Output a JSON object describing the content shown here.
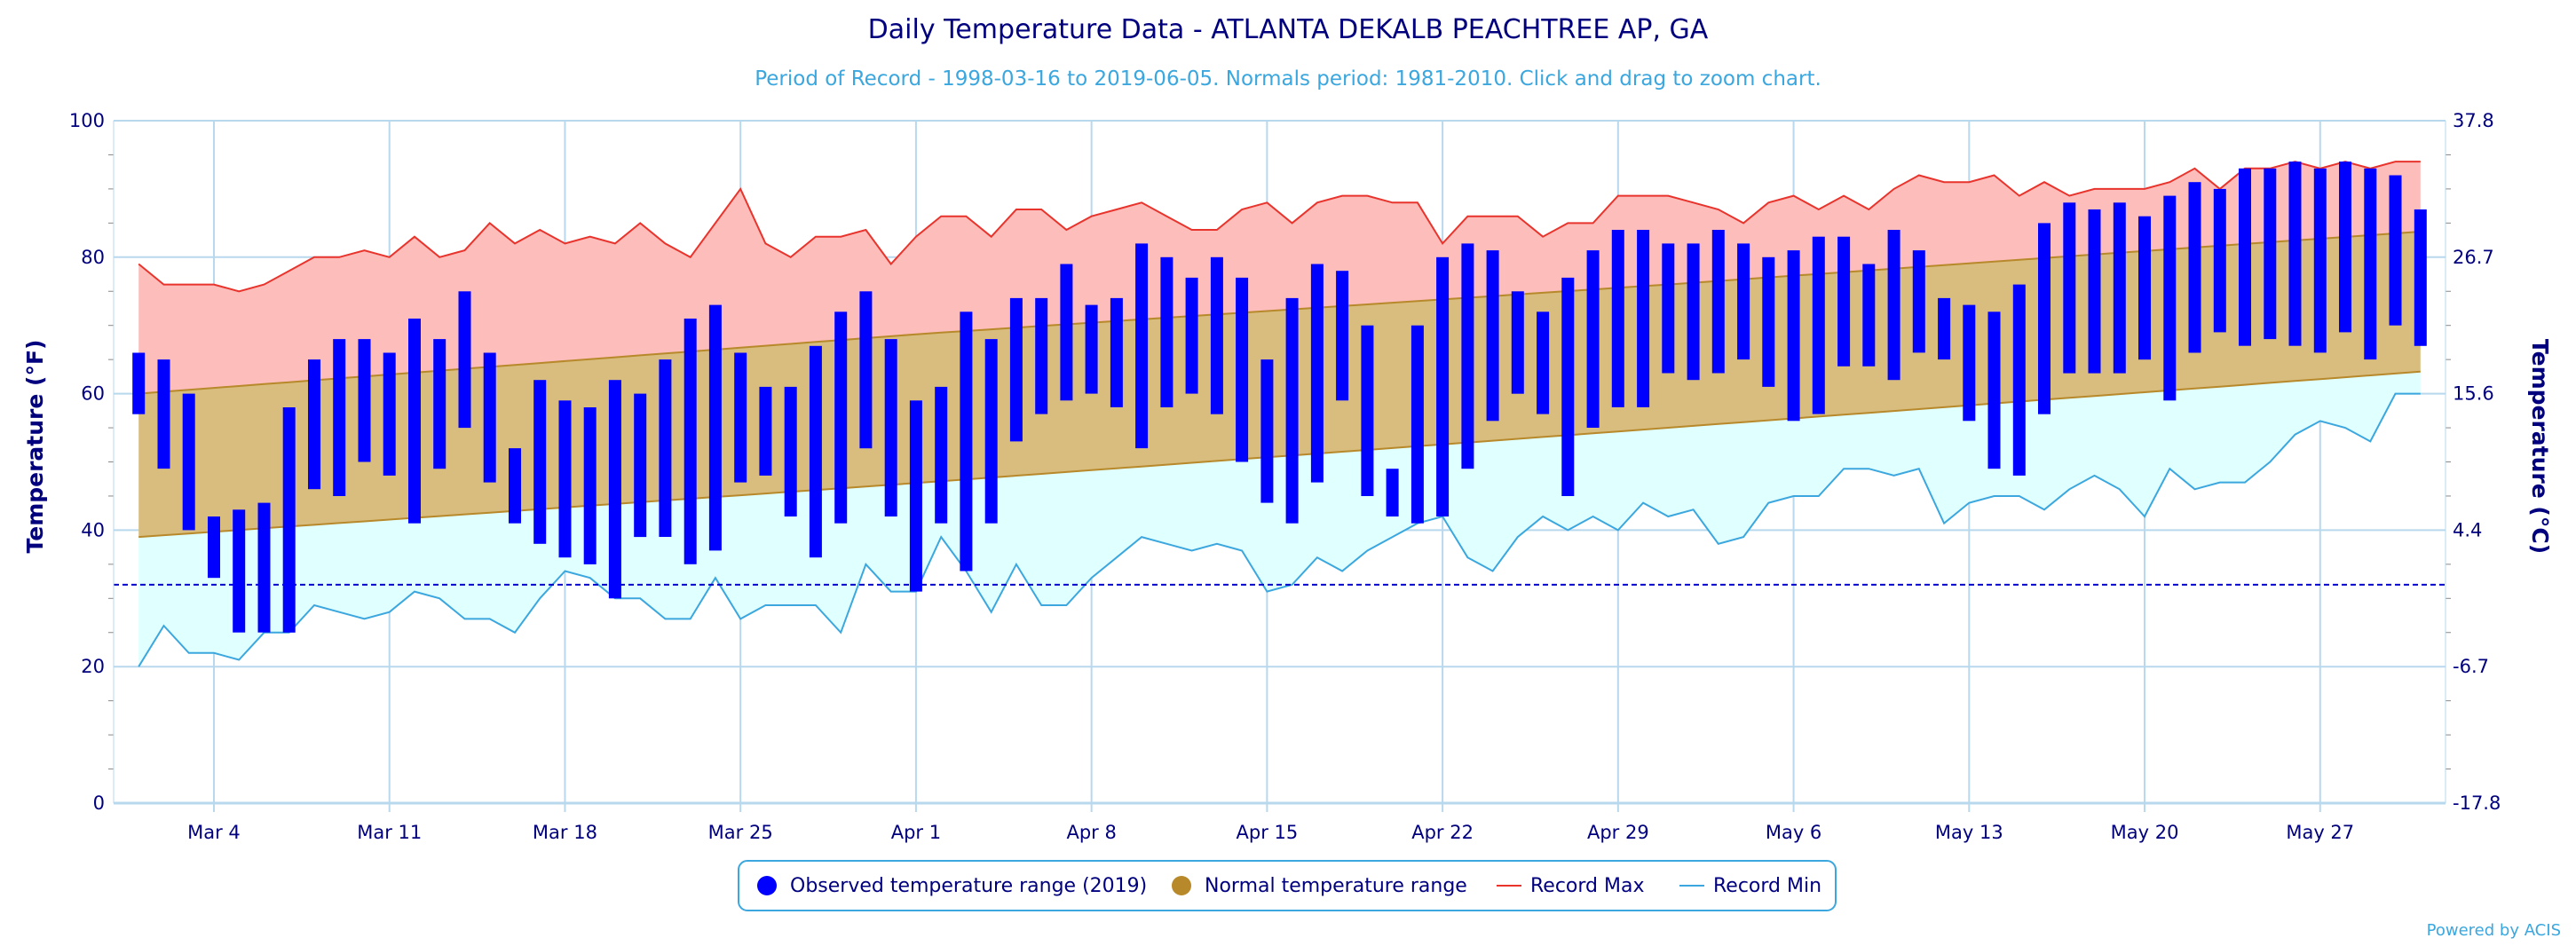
{
  "title": "Daily Temperature Data - ATLANTA DEKALB PEACHTREE AP, GA",
  "subtitle": "Period of Record - 1998-03-16 to 2019-06-05. Normals period: 1981-2010. Click and drag to zoom chart.",
  "credit": "Powered by ACIS",
  "colors": {
    "observed": "#0000ff",
    "normal_fill": "#d8bd7f",
    "normal_line": "#b8892a",
    "record_max": "#e8342c",
    "record_max_fill": "#fcbdbb",
    "record_min": "#3ba7de",
    "record_min_fill": "#e0ffff",
    "freezing": "#0000cc",
    "grid": "#b8d8ee",
    "text": "#00007f"
  },
  "chart_data": {
    "type": "bar",
    "x_type": "date",
    "y_axis": {
      "title": "Temperature (°F)",
      "range": [
        0,
        100
      ],
      "ticks": [
        "0",
        "20",
        "40",
        "60",
        "80",
        "100"
      ]
    },
    "y2_axis": {
      "title": "Temperature (°C)",
      "ticks": [
        "-17.8",
        "-6.7",
        "4.4",
        "15.6",
        "26.7",
        "37.8"
      ]
    },
    "x_axis": {
      "range": [
        "2019-02-28",
        "2019-06-01"
      ],
      "ticks": [
        {
          "date": "2019-03-04",
          "label": "Mar 4"
        },
        {
          "date": "2019-03-11",
          "label": "Mar 11"
        },
        {
          "date": "2019-03-18",
          "label": "Mar 18"
        },
        {
          "date": "2019-03-25",
          "label": "Mar 25"
        },
        {
          "date": "2019-04-01",
          "label": "Apr 1"
        },
        {
          "date": "2019-04-08",
          "label": "Apr 8"
        },
        {
          "date": "2019-04-15",
          "label": "Apr 15"
        },
        {
          "date": "2019-04-22",
          "label": "Apr 22"
        },
        {
          "date": "2019-04-29",
          "label": "Apr 29"
        },
        {
          "date": "2019-05-06",
          "label": "May 6"
        },
        {
          "date": "2019-05-13",
          "label": "May 13"
        },
        {
          "date": "2019-05-20",
          "label": "May 20"
        },
        {
          "date": "2019-05-27",
          "label": "May 27"
        }
      ]
    },
    "grid": true,
    "freezing_line": 32,
    "legend": {
      "placement": "bottom-center",
      "items": [
        {
          "label": "Observed temperature range (2019)",
          "symbol": "dot",
          "color": "#0000ff"
        },
        {
          "label": "Normal temperature range",
          "symbol": "dot",
          "color": "#b8892a"
        },
        {
          "label": "Record Max",
          "symbol": "line",
          "color": "#e8342c"
        },
        {
          "label": "Record Min",
          "symbol": "line",
          "color": "#3ba7de"
        }
      ]
    },
    "start_date": "2019-03-01",
    "observed": [
      [
        57,
        66
      ],
      [
        49,
        65
      ],
      [
        40,
        60
      ],
      [
        33,
        42
      ],
      [
        25,
        43
      ],
      [
        25,
        44
      ],
      [
        25,
        58
      ],
      [
        46,
        65
      ],
      [
        45,
        68
      ],
      [
        50,
        68
      ],
      [
        48,
        66
      ],
      [
        41,
        71
      ],
      [
        49,
        68
      ],
      [
        55,
        75
      ],
      [
        47,
        66
      ],
      [
        41,
        52
      ],
      [
        38,
        62
      ],
      [
        36,
        59
      ],
      [
        35,
        58
      ],
      [
        30,
        62
      ],
      [
        39,
        60
      ],
      [
        39,
        65
      ],
      [
        35,
        71
      ],
      [
        37,
        73
      ],
      [
        47,
        66
      ],
      [
        48,
        61
      ],
      [
        42,
        61
      ],
      [
        36,
        67
      ],
      [
        41,
        72
      ],
      [
        52,
        75
      ],
      [
        42,
        68
      ],
      [
        31,
        59
      ],
      [
        41,
        61
      ],
      [
        34,
        72
      ],
      [
        41,
        68
      ],
      [
        53,
        74
      ],
      [
        57,
        74
      ],
      [
        59,
        79
      ],
      [
        60,
        73
      ],
      [
        58,
        74
      ],
      [
        52,
        82
      ],
      [
        58,
        80
      ],
      [
        60,
        77
      ],
      [
        57,
        80
      ],
      [
        50,
        77
      ],
      [
        44,
        65
      ],
      [
        41,
        74
      ],
      [
        47,
        79
      ],
      [
        59,
        78
      ],
      [
        45,
        70
      ],
      [
        42,
        49
      ],
      [
        41,
        70
      ],
      [
        42,
        80
      ],
      [
        49,
        82
      ],
      [
        56,
        81
      ],
      [
        60,
        75
      ],
      [
        57,
        72
      ],
      [
        45,
        77
      ],
      [
        55,
        81
      ],
      [
        58,
        84
      ],
      [
        58,
        84
      ],
      [
        63,
        82
      ],
      [
        62,
        82
      ],
      [
        63,
        84
      ],
      [
        65,
        82
      ],
      [
        61,
        80
      ],
      [
        56,
        81
      ],
      [
        57,
        83
      ],
      [
        64,
        83
      ],
      [
        64,
        79
      ],
      [
        62,
        84
      ],
      [
        66,
        81
      ],
      [
        65,
        74
      ],
      [
        56,
        73
      ],
      [
        49,
        72
      ],
      [
        48,
        76
      ],
      [
        57,
        85
      ],
      [
        63,
        88
      ],
      [
        63,
        87
      ],
      [
        63,
        88
      ],
      [
        65,
        86
      ],
      [
        59,
        89
      ],
      [
        66,
        91
      ],
      [
        69,
        90
      ],
      [
        67,
        93
      ],
      [
        68,
        93
      ],
      [
        67,
        94
      ],
      [
        66,
        93
      ],
      [
        69,
        94
      ],
      [
        65,
        93
      ],
      [
        70,
        92
      ],
      [
        67,
        87
      ]
    ],
    "normal_low": [
      39,
      46.9,
      55,
      63.5
    ],
    "normal_high": [
      60,
      68.7,
      76,
      84
    ],
    "normal_anchor_days": [
      0,
      31,
      61,
      92
    ],
    "record_max": [
      79,
      76,
      76,
      76,
      75,
      76,
      78,
      80,
      80,
      81,
      80,
      83,
      80,
      81,
      85,
      82,
      84,
      82,
      83,
      82,
      85,
      82,
      80,
      85,
      90,
      82,
      80,
      83,
      83,
      84,
      79,
      83,
      86,
      86,
      83,
      87,
      87,
      84,
      86,
      87,
      88,
      86,
      84,
      84,
      87,
      88,
      85,
      88,
      89,
      89,
      88,
      88,
      82,
      86,
      86,
      86,
      83,
      85,
      85,
      89,
      89,
      89,
      88,
      87,
      85,
      88,
      89,
      87,
      89,
      87,
      90,
      92,
      91,
      91,
      92,
      89,
      91,
      89,
      90,
      90,
      90,
      91,
      93,
      90,
      93,
      93,
      94,
      93,
      94,
      93,
      94,
      94
    ],
    "record_min": [
      20,
      26,
      22,
      22,
      21,
      25,
      25,
      29,
      28,
      27,
      28,
      31,
      30,
      27,
      27,
      25,
      30,
      34,
      33,
      30,
      30,
      27,
      27,
      33,
      27,
      29,
      29,
      29,
      25,
      35,
      31,
      31,
      39,
      34,
      28,
      35,
      29,
      29,
      33,
      36,
      39,
      38,
      37,
      38,
      37,
      31,
      32,
      36,
      34,
      37,
      39,
      41,
      42,
      36,
      34,
      39,
      42,
      40,
      42,
      40,
      44,
      42,
      43,
      38,
      39,
      44,
      45,
      45,
      49,
      49,
      48,
      49,
      41,
      44,
      45,
      45,
      43,
      46,
      48,
      46,
      42,
      49,
      46,
      47,
      47,
      50,
      54,
      56,
      55,
      53,
      60,
      60
    ]
  }
}
